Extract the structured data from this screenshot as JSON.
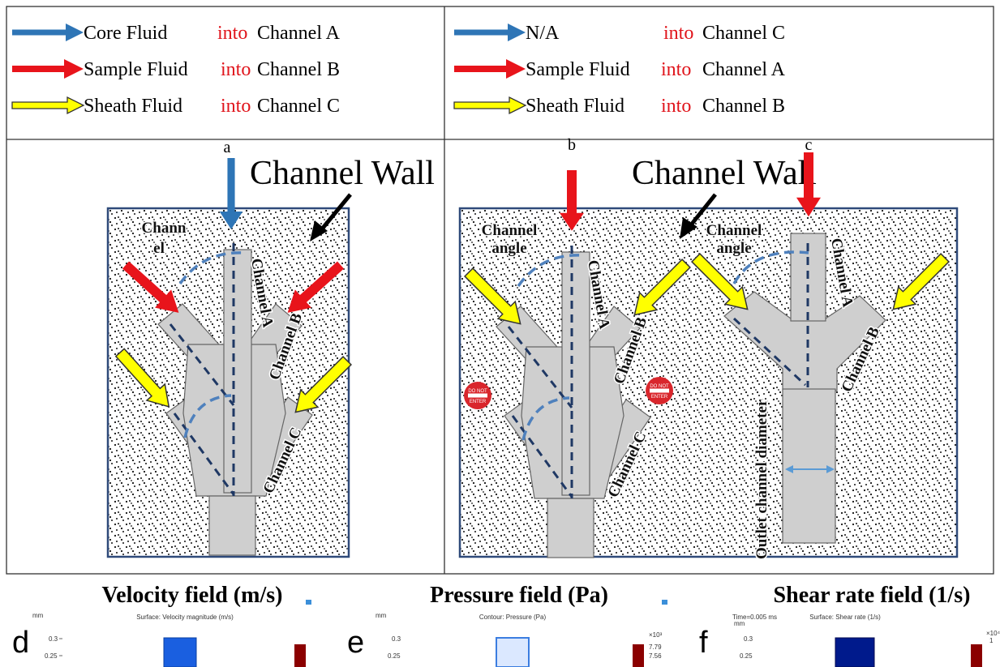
{
  "legends": [
    {
      "rows": [
        {
          "fluid": "Core Fluid",
          "into": "into",
          "channel": "Channel A"
        },
        {
          "fluid": "Sample Fluid",
          "into": "into",
          "channel": "Channel B"
        },
        {
          "fluid": "Sheath Fluid",
          "into": "into",
          "channel": "Channel C"
        }
      ]
    },
    {
      "rows": [
        {
          "fluid": "N/A",
          "into": "into",
          "channel": "Channel C"
        },
        {
          "fluid": "Sample Fluid",
          "into": "into",
          "channel": "Channel A"
        },
        {
          "fluid": "Sheath Fluid",
          "into": "into",
          "channel": "Channel B"
        }
      ]
    }
  ],
  "panels": [
    {
      "label": "a",
      "wall": "Channel Wall",
      "angle": [
        "Chann",
        "el"
      ],
      "channels": [
        "Channel A",
        "Channel B",
        "Channel C"
      ]
    },
    {
      "label": "b",
      "wall": "Channel Wall",
      "angle": [
        "Channel",
        "angle"
      ],
      "channels": [
        "Channel A",
        "Channel B",
        "Channel C"
      ],
      "sign": [
        "DO NOT",
        "ENTER"
      ]
    },
    {
      "label": "c",
      "angle": [
        "Channel",
        "angle"
      ],
      "channels": [
        "Channel A",
        "Channel B"
      ],
      "outlet": "Outlet channel diameter"
    }
  ],
  "plots": [
    {
      "label": "d",
      "title": "Velocity field (m/s)",
      "subtitle": "Surface: Velocity magnitude (m/s)",
      "unit": "mm",
      "ticks": [
        0.3,
        0.25
      ]
    },
    {
      "label": "e",
      "title": "Pressure field (Pa)",
      "subtitle": "Contour: Pressure (Pa)",
      "unit": "mm",
      "ticks": [
        0.3,
        0.25
      ],
      "colorbar": [
        "×10³",
        7.79,
        7.56
      ]
    },
    {
      "label": "f",
      "title": "Shear rate field (1/s)",
      "subtitle": "Surface: Shear rate (1/s)",
      "time": "Time=0.005 ms",
      "unit": "mm",
      "ticks": [
        0.3,
        0.25
      ],
      "colorbar": [
        "×10⁴",
        1
      ]
    }
  ]
}
